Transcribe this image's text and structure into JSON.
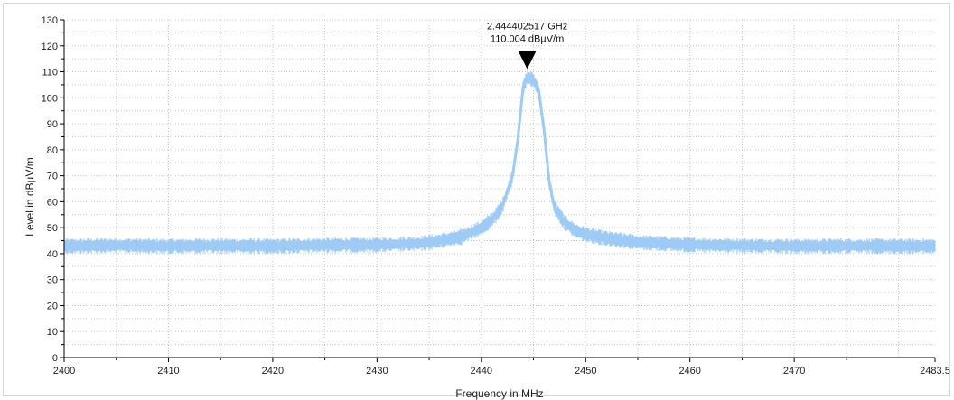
{
  "chart_data": {
    "type": "line",
    "xlabel": "Frequency in MHz",
    "ylabel": "Level in dBµV/m",
    "xlim": [
      2400,
      2483.5
    ],
    "ylim": [
      0,
      130
    ],
    "x_ticks": [
      "2400",
      "2410",
      "2420",
      "2430",
      "2440",
      "2450",
      "2460",
      "2470",
      "2483.5"
    ],
    "y_ticks": [
      "0",
      "10",
      "20",
      "30",
      "40",
      "50",
      "60",
      "70",
      "80",
      "90",
      "100",
      "110",
      "120",
      "130"
    ],
    "grid": true,
    "series": [
      {
        "color": "#9ecbf5",
        "x": [
          2400,
          2405,
          2410,
          2415,
          2420,
          2425,
          2430,
          2434,
          2436,
          2438,
          2440,
          2441,
          2442,
          2443,
          2443.5,
          2444,
          2444.4,
          2445,
          2445.5,
          2446,
          2446.5,
          2447,
          2448,
          2449,
          2450,
          2452,
          2455,
          2460,
          2465,
          2470,
          2475,
          2480,
          2483.5
        ],
        "y": [
          43,
          43.3,
          43,
          43.2,
          43,
          43.4,
          43.5,
          44,
          45,
          46.5,
          50,
          53,
          58,
          70,
          84,
          104,
          108,
          107,
          103,
          88,
          68,
          58,
          52,
          49,
          47.5,
          46,
          44.5,
          43.5,
          43.2,
          43,
          43.1,
          43,
          43
        ]
      }
    ],
    "marker": {
      "frequency_label": "2.444402517 GHz",
      "level_label": "110.004 dBµV/m",
      "x": 2444.4,
      "y": 110.004
    }
  }
}
